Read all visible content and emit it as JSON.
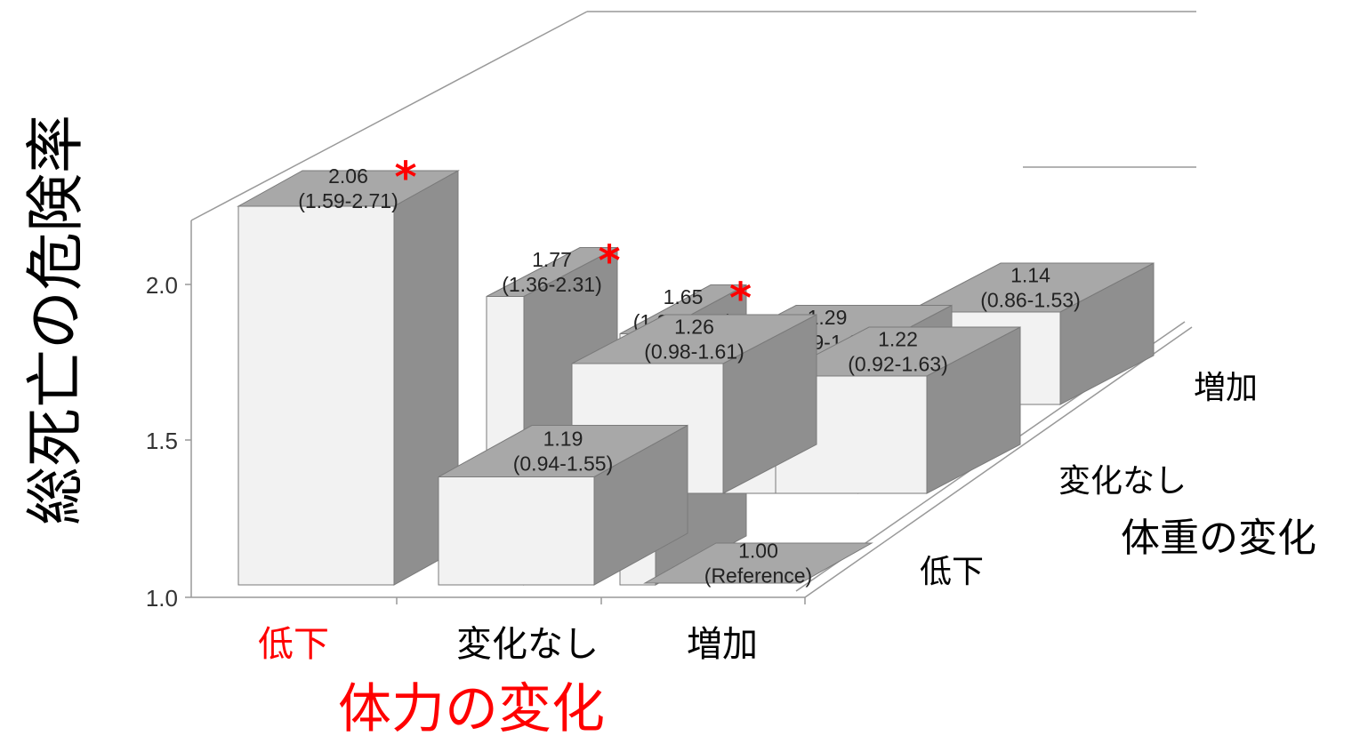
{
  "chart_data": {
    "type": "bar",
    "ylabel": "総死亡の危険率",
    "xlabel": "体力の変化",
    "zlabel": "体重の変化",
    "x_categories": [
      "低下",
      "変化なし",
      "増加"
    ],
    "z_categories": [
      "低下",
      "変化なし",
      "増加"
    ],
    "yticks": [
      "1.0",
      "1.5",
      "2.0"
    ],
    "ylim": [
      1.0,
      2.5
    ],
    "significance_marker": "*",
    "colors": {
      "x_title": "#ff0000",
      "x_highlight": "#ff0000",
      "marker": "#ff0000",
      "bar_front": "#f2f2f2",
      "bar_side": "#8f8f8f",
      "bar_top": "#a8a8a8"
    },
    "bars": [
      {
        "x": "低下",
        "z": "増加",
        "value": 2.06,
        "label": "2.06",
        "ci": "(1.59-2.71)",
        "significant": true
      },
      {
        "x": "変化なし",
        "z": "増加",
        "value": 1.77,
        "label": "1.77",
        "ci": "(1.36-2.31)",
        "significant": true
      },
      {
        "x": "増加",
        "z": "増加",
        "value": 1.65,
        "label": "1.65",
        "ci": "(1.30-2.10)",
        "significant": true
      },
      {
        "x": "変化なし",
        "z": "変化なし",
        "value": 1.29,
        "label": "1.29",
        "ci": "(0.99-1.68)",
        "significant": false
      },
      {
        "x": "増加",
        "z": "変化なし",
        "value": 1.14,
        "label": "1.14",
        "ci": "(0.86-1.53)",
        "significant": false
      },
      {
        "x": "増加",
        "z": "低下",
        "value": 1.26,
        "label": "1.26",
        "ci": "(0.98-1.61)",
        "significant": false
      },
      {
        "x": "変化なし",
        "z": "低下",
        "value": 1.22,
        "label": "1.22",
        "ci": "(0.92-1.63)",
        "significant": false
      },
      {
        "x": "低下",
        "z": "低下",
        "value": 1.19,
        "label": "1.19",
        "ci": "(0.94-1.55)",
        "significant": false
      },
      {
        "x": "低下",
        "z": "変化なし",
        "value": 1.0,
        "label": "1.00",
        "ci": "(Reference)",
        "significant": false
      }
    ]
  }
}
